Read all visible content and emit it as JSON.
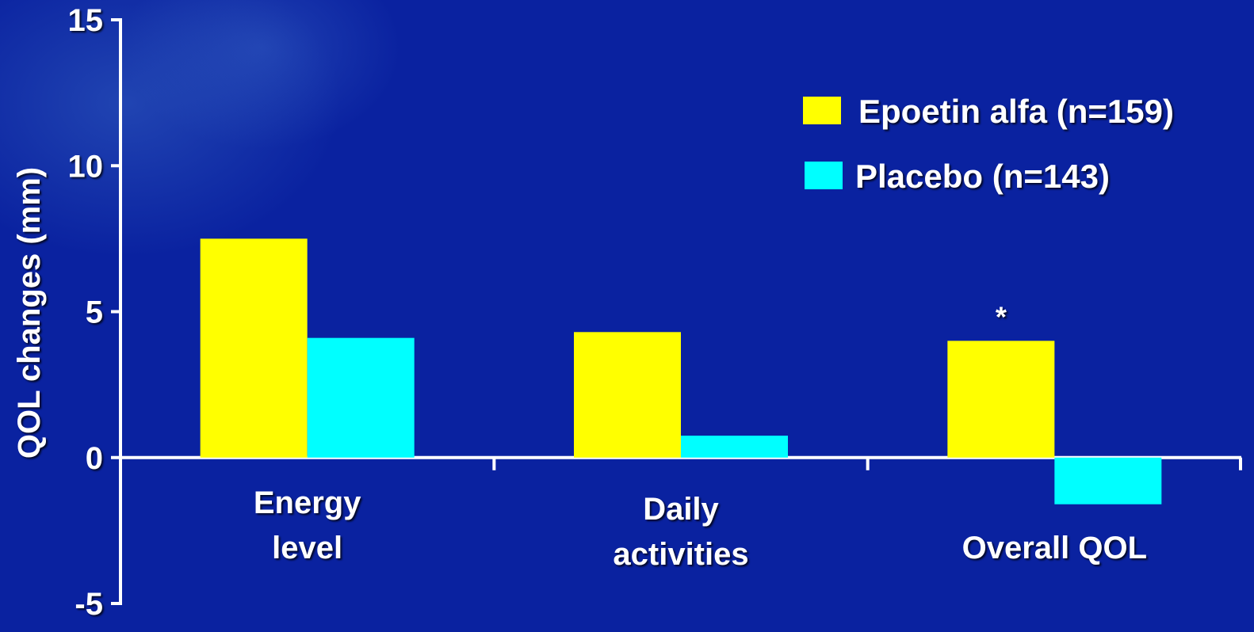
{
  "chart_data": {
    "type": "bar",
    "categories": [
      [
        "Energy",
        "level"
      ],
      [
        "Daily",
        "activities"
      ],
      [
        "Overall QOL"
      ]
    ],
    "series": [
      {
        "name": "Epoetin alfa (n=159)",
        "color": "#ffff00",
        "values": [
          7.5,
          4.3,
          4.0
        ]
      },
      {
        "name": "Placebo (n=143)",
        "color": "#00ffff",
        "values": [
          4.1,
          0.75,
          -1.6
        ]
      }
    ],
    "ylabel": "QOL changes (mm)",
    "yticks": [
      15,
      10,
      5,
      0,
      -5
    ],
    "ylim": [
      -5,
      15
    ],
    "annotations": [
      {
        "category_index": 2,
        "series_index": 0,
        "text": "*"
      }
    ],
    "legend_position": "top-right",
    "grid": false
  }
}
